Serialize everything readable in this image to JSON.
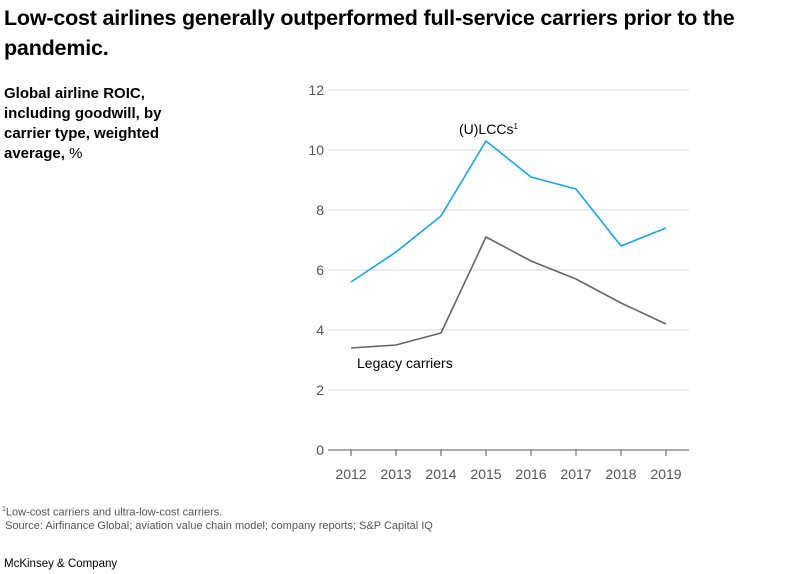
{
  "title": "Low-cost airlines generally outperformed full-service carriers prior to the pandemic.",
  "ylabel_main": "Global airline ROIC, including goodwill, by carrier type, weighted average,",
  "ylabel_unit": "%",
  "footnote_marker": "1",
  "footnote": "Low-cost carriers and ultra-low-cost carriers.",
  "source": "Source: Airfinance Global; aviation value chain model; company reports; S&P Capital IQ",
  "brand": "McKinsey & Company",
  "colors": {
    "lcc": "#1aa3e8",
    "legacy": "#666666",
    "grid": "#d9d9d9",
    "axis": "#555555"
  },
  "chart_data": {
    "type": "line",
    "x": [
      "2012",
      "2013",
      "2014",
      "2015",
      "2016",
      "2017",
      "2018",
      "2019"
    ],
    "ylim": [
      0,
      12
    ],
    "yticks": [
      0,
      2,
      4,
      6,
      8,
      10,
      12
    ],
    "grid": true,
    "series": [
      {
        "name": "(U)LCCs",
        "superscript": "1",
        "values": [
          5.6,
          6.6,
          7.8,
          10.3,
          9.1,
          8.7,
          6.8,
          7.4
        ]
      },
      {
        "name": "Legacy carriers",
        "values": [
          3.4,
          3.5,
          3.9,
          7.1,
          6.3,
          5.7,
          4.9,
          4.2
        ]
      }
    ]
  }
}
